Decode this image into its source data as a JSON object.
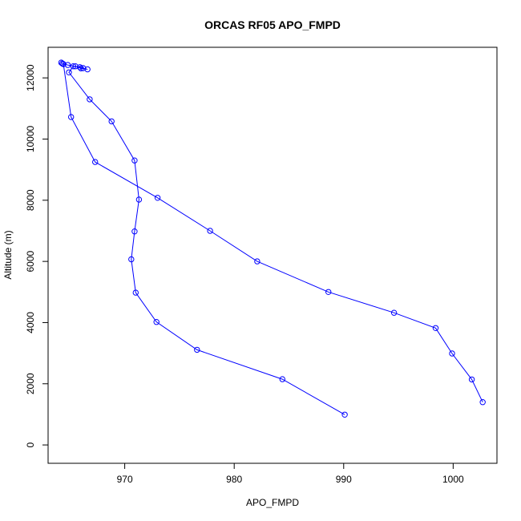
{
  "chart_data": {
    "type": "line",
    "title": "ORCAS RF05 APO_FMPD",
    "xlabel": "APO_FMPD",
    "ylabel": "Altitude (m)",
    "xlim": [
      963,
      1004
    ],
    "ylim": [
      -600,
      13000
    ],
    "xticks": [
      970,
      980,
      990,
      1000
    ],
    "yticks": [
      0,
      2000,
      4000,
      6000,
      8000,
      10000,
      12000
    ],
    "xtick_labels": [
      "970",
      "980",
      "990",
      "1000"
    ],
    "ytick_labels": [
      "0",
      "2000",
      "4000",
      "6000",
      "8000",
      "10000",
      "12000"
    ],
    "grid": false,
    "series": [
      {
        "color": "#0000ff",
        "marker": "open-circle",
        "points": [
          {
            "x": 990.1,
            "y": 990
          },
          {
            "x": 984.4,
            "y": 2150
          },
          {
            "x": 976.6,
            "y": 3110
          },
          {
            "x": 972.9,
            "y": 4020
          },
          {
            "x": 971.0,
            "y": 4980
          },
          {
            "x": 970.6,
            "y": 6070
          },
          {
            "x": 970.9,
            "y": 6980
          },
          {
            "x": 971.3,
            "y": 8020
          },
          {
            "x": 970.9,
            "y": 9300
          },
          {
            "x": 968.8,
            "y": 10580
          },
          {
            "x": 966.8,
            "y": 11300
          },
          {
            "x": 964.9,
            "y": 12180
          },
          {
            "x": 965.3,
            "y": 12380
          },
          {
            "x": 965.9,
            "y": 12350
          },
          {
            "x": 966.2,
            "y": 12320
          },
          {
            "x": 966.6,
            "y": 12280
          },
          {
            "x": 966.0,
            "y": 12310
          },
          {
            "x": 965.5,
            "y": 12380
          },
          {
            "x": 964.8,
            "y": 12420
          },
          {
            "x": 964.3,
            "y": 12470
          },
          {
            "x": 964.2,
            "y": 12500
          },
          {
            "x": 964.4,
            "y": 12450
          },
          {
            "x": 965.1,
            "y": 10720
          },
          {
            "x": 967.3,
            "y": 9250
          },
          {
            "x": 973.0,
            "y": 8080
          },
          {
            "x": 977.8,
            "y": 7000
          },
          {
            "x": 982.1,
            "y": 6000
          },
          {
            "x": 988.6,
            "y": 5000
          },
          {
            "x": 994.6,
            "y": 4320
          },
          {
            "x": 998.4,
            "y": 3820
          },
          {
            "x": 999.9,
            "y": 2990
          },
          {
            "x": 1001.7,
            "y": 2140
          },
          {
            "x": 1002.7,
            "y": 1400
          }
        ]
      }
    ]
  }
}
